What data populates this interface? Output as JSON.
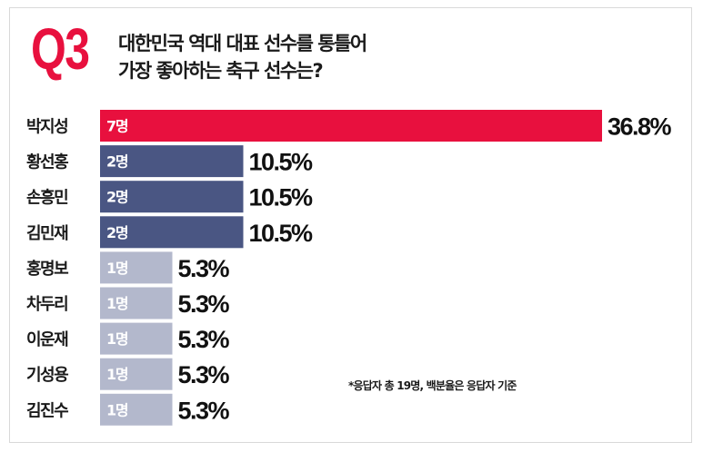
{
  "header": {
    "question_number": "Q3",
    "question_line1": "대한민국 역대 대표 선수를 통틀어",
    "question_line2": "가장 좋아하는 축구 선수는?"
  },
  "footnote": "*응답자 총 19명, 백분율은 응답자 기준",
  "colors": {
    "accent": "#e8103e",
    "tier_high": "#e8103e",
    "tier_mid": "#4a5683",
    "tier_low": "#b3b8cc"
  },
  "chart_data": {
    "type": "bar",
    "orientation": "horizontal",
    "categories": [
      "박지성",
      "황선홍",
      "손흥민",
      "김민재",
      "홍명보",
      "차두리",
      "이운재",
      "기성용",
      "김진수"
    ],
    "counts": [
      7,
      2,
      2,
      2,
      1,
      1,
      1,
      1,
      1
    ],
    "count_labels": [
      "7명",
      "2명",
      "2명",
      "2명",
      "1명",
      "1명",
      "1명",
      "1명",
      "1명"
    ],
    "values": [
      36.8,
      10.5,
      10.5,
      10.5,
      5.3,
      5.3,
      5.3,
      5.3,
      5.3
    ],
    "value_labels": [
      "36.8%",
      "10.5%",
      "10.5%",
      "10.5%",
      "5.3%",
      "5.3%",
      "5.3%",
      "5.3%",
      "5.3%"
    ],
    "xlim": [
      0,
      36.8
    ],
    "grid": false,
    "legend": "none"
  }
}
